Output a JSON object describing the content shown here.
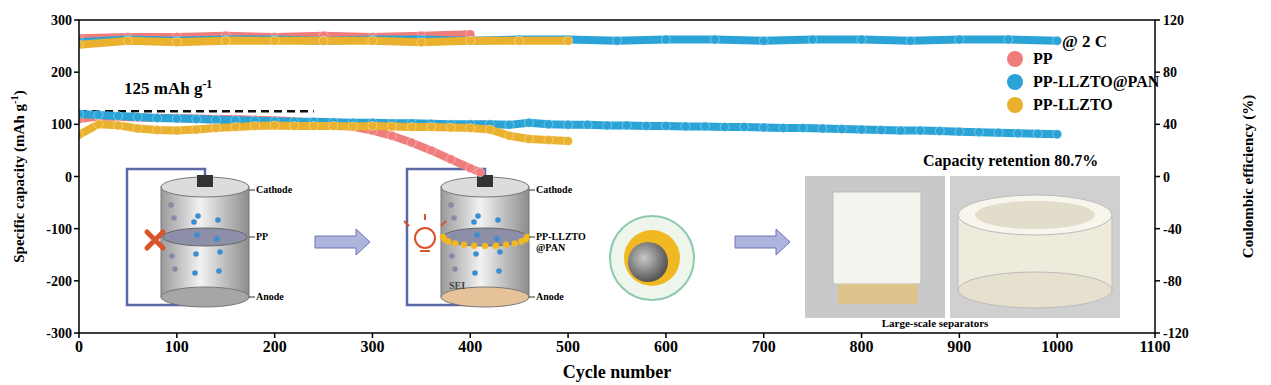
{
  "chart_data": {
    "type": "line",
    "x_label": "Cycle number",
    "y_label": [
      "Specific capacity (mAh g",
      {
        "sup": "-1"
      },
      ")"
    ],
    "y2_label": "Coulombic efficiency (%)",
    "xlim": [
      0,
      1100
    ],
    "xticks": [
      0,
      100,
      200,
      300,
      400,
      500,
      600,
      700,
      800,
      900,
      1000,
      1100
    ],
    "ylim": [
      -300,
      300
    ],
    "yticks": [
      -300,
      -200,
      -100,
      0,
      100,
      200,
      300
    ],
    "y2lim": [
      -120,
      120
    ],
    "y2ticks": [
      -120,
      -80,
      -40,
      0,
      40,
      80,
      120
    ],
    "grid": false,
    "legend": "upper right",
    "annotations": {
      "rate": "@ 2 C",
      "retention": "Capacity retention 80.7%",
      "reference_label": [
        "125 mAh g",
        {
          "sup": "-1"
        }
      ],
      "reference_line": {
        "y": 125,
        "x": [
          0,
          240
        ]
      }
    },
    "series": [
      {
        "name": "PP",
        "color": "#f07c7c",
        "marker": "circle",
        "x": [
          0,
          20,
          40,
          60,
          80,
          100,
          120,
          140,
          160,
          180,
          200,
          220,
          240,
          260,
          280,
          300,
          320,
          340,
          360,
          380,
          400,
          410
        ],
        "values": [
          110,
          115,
          114,
          113,
          112,
          112,
          111,
          110,
          110,
          109,
          108,
          106,
          103,
          100,
          95,
          88,
          78,
          65,
          50,
          33,
          16,
          8
        ]
      },
      {
        "name": "PP-LLZTO@PAN",
        "color": "#2aa3d6",
        "marker": "circle",
        "x": [
          0,
          20,
          40,
          60,
          80,
          100,
          120,
          140,
          160,
          180,
          200,
          220,
          240,
          260,
          280,
          300,
          320,
          340,
          360,
          380,
          400,
          420,
          440,
          460,
          480,
          500,
          520,
          540,
          560,
          580,
          600,
          620,
          640,
          660,
          680,
          700,
          720,
          740,
          760,
          780,
          800,
          820,
          840,
          860,
          880,
          900,
          920,
          940,
          960,
          980,
          1000
        ],
        "values": [
          120,
          118,
          116,
          114,
          112,
          111,
          110,
          109,
          108,
          107,
          106,
          105,
          105,
          104,
          103,
          103,
          102,
          102,
          101,
          100,
          100,
          100,
          99,
          103,
          100,
          99,
          99,
          98,
          98,
          97,
          97,
          96,
          96,
          95,
          95,
          94,
          93,
          93,
          92,
          91,
          90,
          89,
          88,
          88,
          87,
          86,
          85,
          84,
          83,
          82,
          81
        ]
      },
      {
        "name": "PP-LLZTO",
        "color": "#eab12f",
        "marker": "circle",
        "x": [
          0,
          20,
          40,
          60,
          80,
          100,
          120,
          140,
          160,
          180,
          200,
          220,
          240,
          260,
          280,
          300,
          320,
          340,
          360,
          380,
          400,
          420,
          440,
          460,
          480,
          500
        ],
        "values": [
          80,
          100,
          98,
          92,
          89,
          88,
          90,
          93,
          95,
          97,
          98,
          97,
          97,
          97,
          96,
          97,
          96,
          95,
          95,
          94,
          93,
          90,
          78,
          72,
          70,
          68
        ]
      },
      {
        "name": "PP",
        "color": "#f07c7c",
        "marker": "circle",
        "axis": "y2",
        "x": [
          0,
          50,
          100,
          150,
          200,
          250,
          300,
          350,
          400
        ],
        "values": [
          106,
          107,
          107,
          108,
          107,
          108,
          107,
          108,
          109
        ]
      },
      {
        "name": "PP-LLZTO@PAN",
        "color": "#2aa3d6",
        "marker": "circle",
        "axis": "y2",
        "x": [
          0,
          50,
          100,
          150,
          200,
          250,
          300,
          350,
          400,
          450,
          500,
          550,
          600,
          650,
          700,
          750,
          800,
          850,
          900,
          950,
          1000
        ],
        "values": [
          103,
          105,
          104,
          105,
          105,
          104,
          105,
          105,
          104,
          105,
          105,
          104,
          105,
          105,
          104,
          105,
          105,
          104,
          105,
          105,
          104
        ]
      },
      {
        "name": "PP-LLZTO",
        "color": "#eab12f",
        "marker": "circle",
        "axis": "y2",
        "x": [
          0,
          50,
          100,
          150,
          200,
          250,
          300,
          350,
          400,
          450,
          500
        ],
        "values": [
          101,
          104,
          103,
          104,
          104,
          104,
          104,
          103,
          104,
          104,
          104
        ]
      }
    ]
  },
  "diagram": {
    "before": {
      "cathode": "Cathode",
      "separator": [
        "PP"
      ],
      "anode": "Anode"
    },
    "after": {
      "cathode": "Cathode",
      "separator": [
        "PP-LLZTO",
        "@PAN"
      ],
      "interphase": "SEI",
      "anode": "Anode"
    },
    "photo_caption": "Large-scale separators"
  }
}
